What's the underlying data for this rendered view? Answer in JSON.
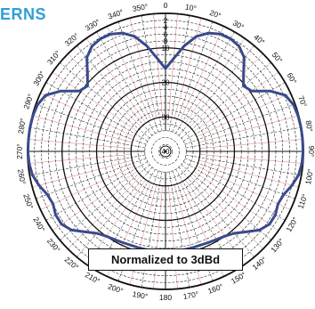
{
  "header": {
    "text": "ERNS"
  },
  "caption": {
    "text": "Normalized to 3dBd"
  },
  "chart_data": {
    "type": "polar-line",
    "angle_unit": "degrees",
    "angle_zero": "top",
    "angle_direction": "clockwise",
    "angle_labels": [
      "0",
      "10°",
      "20°",
      "30°",
      "40°",
      "50°",
      "60°",
      "70°",
      "80°",
      "90°",
      "100°",
      "110°",
      "120°",
      "130°",
      "140°",
      "150°",
      "160°",
      "170°",
      "180",
      "190°",
      "200°",
      "210°",
      "220°",
      "230°",
      "240°",
      "250°",
      "260°",
      "270°",
      "280°",
      "290°",
      "300°",
      "310°",
      "320°",
      "330°",
      "340°",
      "350°"
    ],
    "radial_unit": "dB",
    "radial_range": [
      -40,
      0
    ],
    "radial_labels": [
      "2",
      "4",
      "6",
      "8",
      "10",
      "",
      "",
      "",
      "",
      "20",
      "",
      "",
      "",
      "",
      "30",
      "",
      "",
      "",
      "",
      "40"
    ],
    "line_color": "#3a4a8c",
    "grid_color": "#111111",
    "subgrid_color": "#d97a7a",
    "series": [
      {
        "theta": [
          0,
          5,
          10,
          15,
          20,
          25,
          30,
          35,
          40,
          45,
          50,
          55,
          60,
          65,
          70,
          75,
          80,
          85,
          90,
          95,
          100,
          105,
          110,
          115,
          120,
          125,
          130,
          135,
          140,
          145,
          150,
          155,
          160,
          165,
          170,
          175,
          180,
          185,
          190,
          195,
          200,
          205,
          210,
          215,
          220,
          225,
          230,
          235,
          240,
          245,
          250,
          255,
          260,
          265,
          270,
          275,
          280,
          285,
          290,
          295,
          300,
          305,
          310,
          315,
          320,
          325,
          330,
          335,
          340,
          345,
          350,
          355
        ],
        "r": [
          -16.0,
          -13.0,
          -9.0,
          -5.5,
          -3.5,
          -2.5,
          -2.3,
          -2.8,
          -4.5,
          -8.0,
          -10.5,
          -9.5,
          -5.0,
          -1.6,
          -0.5,
          -0.2,
          -0.1,
          -0.1,
          -0.1,
          -0.3,
          -0.8,
          -2.0,
          -3.5,
          -4.0,
          -3.2,
          -3.2,
          -4.5,
          -7.0,
          -9.0,
          -10.0,
          -10.5,
          -10.8,
          -11.0,
          -11.0,
          -11.0,
          -11.0,
          -11.0,
          -11.0,
          -11.0,
          -11.0,
          -11.0,
          -10.8,
          -10.5,
          -10.0,
          -9.0,
          -7.0,
          -4.5,
          -3.2,
          -3.2,
          -4.0,
          -3.5,
          -2.0,
          -0.8,
          -0.3,
          -0.1,
          -0.1,
          -0.1,
          -0.2,
          -0.5,
          -1.6,
          -5.0,
          -9.5,
          -10.5,
          -8.0,
          -4.5,
          -2.8,
          -2.3,
          -2.5,
          -3.5,
          -5.5,
          -9.0,
          -13.0
        ]
      }
    ]
  }
}
